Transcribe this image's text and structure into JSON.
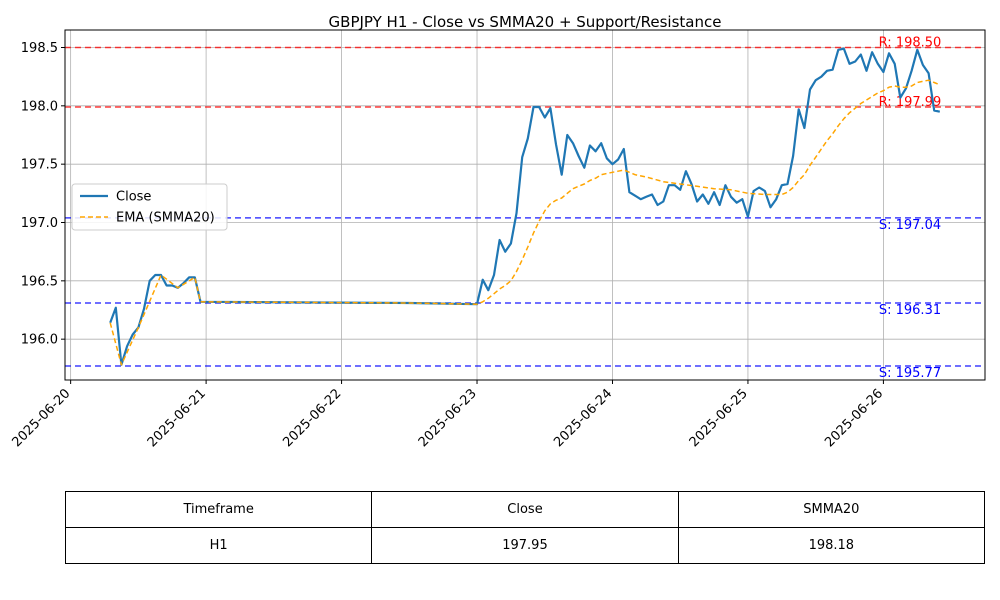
{
  "chart_data": {
    "type": "line",
    "title": "GBPJPY H1 - Close vs SMMA20 + Support/Resistance",
    "xlabel": "",
    "ylabel": "",
    "x_ticks": [
      "2025-06-20",
      "2025-06-21",
      "2025-06-22",
      "2025-06-23",
      "2025-06-24",
      "2025-06-25",
      "2025-06-26"
    ],
    "xlim": [
      "2025-06-19T23:00",
      "2025-06-26T18:00"
    ],
    "ylim": [
      195.65,
      198.65
    ],
    "y_ticks": [
      "196.0",
      "196.5",
      "197.0",
      "197.5",
      "198.0",
      "198.5"
    ],
    "grid": true,
    "legend_position": "center-left",
    "series": [
      {
        "name": "Close",
        "color": "#1f77b4",
        "style": "solid",
        "points": [
          [
            "2025-06-20T07:00",
            196.14
          ],
          [
            "2025-06-20T08:00",
            196.27
          ],
          [
            "2025-06-20T09:00",
            195.78
          ],
          [
            "2025-06-20T10:00",
            195.94
          ],
          [
            "2025-06-20T11:00",
            196.04
          ],
          [
            "2025-06-20T12:00",
            196.1
          ],
          [
            "2025-06-20T13:00",
            196.26
          ],
          [
            "2025-06-20T14:00",
            196.5
          ],
          [
            "2025-06-20T15:00",
            196.55
          ],
          [
            "2025-06-20T16:00",
            196.55
          ],
          [
            "2025-06-20T17:00",
            196.46
          ],
          [
            "2025-06-20T18:00",
            196.46
          ],
          [
            "2025-06-20T19:00",
            196.44
          ],
          [
            "2025-06-20T20:00",
            196.48
          ],
          [
            "2025-06-20T21:00",
            196.53
          ],
          [
            "2025-06-20T22:00",
            196.53
          ],
          [
            "2025-06-20T23:00",
            196.32
          ],
          [
            "2025-06-22T12:00",
            196.31
          ],
          [
            "2025-06-23T00:00",
            196.3
          ],
          [
            "2025-06-23T01:00",
            196.51
          ],
          [
            "2025-06-23T02:00",
            196.42
          ],
          [
            "2025-06-23T03:00",
            196.55
          ],
          [
            "2025-06-23T04:00",
            196.85
          ],
          [
            "2025-06-23T05:00",
            196.75
          ],
          [
            "2025-06-23T06:00",
            196.82
          ],
          [
            "2025-06-23T07:00",
            197.08
          ],
          [
            "2025-06-23T08:00",
            197.56
          ],
          [
            "2025-06-23T09:00",
            197.72
          ],
          [
            "2025-06-23T10:00",
            197.99
          ],
          [
            "2025-06-23T11:00",
            197.99
          ],
          [
            "2025-06-23T12:00",
            197.9
          ],
          [
            "2025-06-23T13:00",
            197.98
          ],
          [
            "2025-06-23T14:00",
            197.67
          ],
          [
            "2025-06-23T15:00",
            197.41
          ],
          [
            "2025-06-23T16:00",
            197.75
          ],
          [
            "2025-06-23T17:00",
            197.68
          ],
          [
            "2025-06-23T18:00",
            197.57
          ],
          [
            "2025-06-23T19:00",
            197.47
          ],
          [
            "2025-06-23T20:00",
            197.66
          ],
          [
            "2025-06-23T21:00",
            197.61
          ],
          [
            "2025-06-23T22:00",
            197.68
          ],
          [
            "2025-06-23T23:00",
            197.55
          ],
          [
            "2025-06-24T00:00",
            197.5
          ],
          [
            "2025-06-24T01:00",
            197.54
          ],
          [
            "2025-06-24T02:00",
            197.63
          ],
          [
            "2025-06-24T03:00",
            197.26
          ],
          [
            "2025-06-24T04:00",
            197.23
          ],
          [
            "2025-06-24T05:00",
            197.2
          ],
          [
            "2025-06-24T06:00",
            197.22
          ],
          [
            "2025-06-24T07:00",
            197.24
          ],
          [
            "2025-06-24T08:00",
            197.15
          ],
          [
            "2025-06-24T09:00",
            197.18
          ],
          [
            "2025-06-24T10:00",
            197.32
          ],
          [
            "2025-06-24T11:00",
            197.32
          ],
          [
            "2025-06-24T12:00",
            197.28
          ],
          [
            "2025-06-24T13:00",
            197.44
          ],
          [
            "2025-06-24T14:00",
            197.33
          ],
          [
            "2025-06-24T15:00",
            197.18
          ],
          [
            "2025-06-24T16:00",
            197.24
          ],
          [
            "2025-06-24T17:00",
            197.16
          ],
          [
            "2025-06-24T18:00",
            197.26
          ],
          [
            "2025-06-24T19:00",
            197.15
          ],
          [
            "2025-06-24T20:00",
            197.32
          ],
          [
            "2025-06-24T21:00",
            197.22
          ],
          [
            "2025-06-24T22:00",
            197.17
          ],
          [
            "2025-06-24T23:00",
            197.2
          ],
          [
            "2025-06-25T00:00",
            197.05
          ],
          [
            "2025-06-25T01:00",
            197.27
          ],
          [
            "2025-06-25T02:00",
            197.3
          ],
          [
            "2025-06-25T03:00",
            197.27
          ],
          [
            "2025-06-25T04:00",
            197.13
          ],
          [
            "2025-06-25T05:00",
            197.2
          ],
          [
            "2025-06-25T06:00",
            197.32
          ],
          [
            "2025-06-25T07:00",
            197.33
          ],
          [
            "2025-06-25T08:00",
            197.57
          ],
          [
            "2025-06-25T09:00",
            197.97
          ],
          [
            "2025-06-25T10:00",
            197.81
          ],
          [
            "2025-06-25T11:00",
            198.14
          ],
          [
            "2025-06-25T12:00",
            198.22
          ],
          [
            "2025-06-25T13:00",
            198.25
          ],
          [
            "2025-06-25T14:00",
            198.3
          ],
          [
            "2025-06-25T15:00",
            198.31
          ],
          [
            "2025-06-25T16:00",
            198.48
          ],
          [
            "2025-06-25T17:00",
            198.49
          ],
          [
            "2025-06-25T18:00",
            198.36
          ],
          [
            "2025-06-25T19:00",
            198.38
          ],
          [
            "2025-06-25T20:00",
            198.44
          ],
          [
            "2025-06-25T21:00",
            198.3
          ],
          [
            "2025-06-25T22:00",
            198.46
          ],
          [
            "2025-06-25T23:00",
            198.36
          ],
          [
            "2025-06-26T00:00",
            198.29
          ],
          [
            "2025-06-26T01:00",
            198.45
          ],
          [
            "2025-06-26T02:00",
            198.36
          ],
          [
            "2025-06-26T03:00",
            198.07
          ],
          [
            "2025-06-26T04:00",
            198.15
          ],
          [
            "2025-06-26T05:00",
            198.3
          ],
          [
            "2025-06-26T06:00",
            198.48
          ],
          [
            "2025-06-26T07:00",
            198.35
          ],
          [
            "2025-06-26T08:00",
            198.28
          ],
          [
            "2025-06-26T09:00",
            197.96
          ],
          [
            "2025-06-26T10:00",
            197.95
          ]
        ]
      },
      {
        "name": "EMA (SMMA20)",
        "color": "#ffa500",
        "style": "dashed",
        "points": [
          [
            "2025-06-20T07:00",
            196.14
          ],
          [
            "2025-06-20T09:00",
            195.78
          ],
          [
            "2025-06-20T12:00",
            196.1
          ],
          [
            "2025-06-20T16:00",
            196.55
          ],
          [
            "2025-06-20T19:00",
            196.44
          ],
          [
            "2025-06-20T22:00",
            196.53
          ],
          [
            "2025-06-20T23:00",
            196.32
          ],
          [
            "2025-06-22T12:00",
            196.31
          ],
          [
            "2025-06-23T00:00",
            196.3
          ],
          [
            "2025-06-23T01:00",
            196.32
          ],
          [
            "2025-06-23T02:00",
            196.35
          ],
          [
            "2025-06-23T03:00",
            196.39
          ],
          [
            "2025-06-23T04:00",
            196.43
          ],
          [
            "2025-06-23T05:00",
            196.46
          ],
          [
            "2025-06-23T06:00",
            196.5
          ],
          [
            "2025-06-23T07:00",
            196.58
          ],
          [
            "2025-06-23T08:00",
            196.68
          ],
          [
            "2025-06-23T09:00",
            196.79
          ],
          [
            "2025-06-23T10:00",
            196.91
          ],
          [
            "2025-06-23T11:00",
            197.01
          ],
          [
            "2025-06-23T12:00",
            197.1
          ],
          [
            "2025-06-23T13:00",
            197.16
          ],
          [
            "2025-06-23T14:00",
            197.19
          ],
          [
            "2025-06-23T15:00",
            197.21
          ],
          [
            "2025-06-23T16:00",
            197.25
          ],
          [
            "2025-06-23T17:00",
            197.29
          ],
          [
            "2025-06-23T18:00",
            197.31
          ],
          [
            "2025-06-23T19:00",
            197.33
          ],
          [
            "2025-06-23T20:00",
            197.36
          ],
          [
            "2025-06-23T21:00",
            197.38
          ],
          [
            "2025-06-23T22:00",
            197.41
          ],
          [
            "2025-06-23T23:00",
            197.42
          ],
          [
            "2025-06-24T00:00",
            197.43
          ],
          [
            "2025-06-24T01:00",
            197.44
          ],
          [
            "2025-06-24T02:00",
            197.45
          ],
          [
            "2025-06-24T03:00",
            197.43
          ],
          [
            "2025-06-24T04:00",
            197.41
          ],
          [
            "2025-06-24T06:00",
            197.39
          ],
          [
            "2025-06-24T09:00",
            197.35
          ],
          [
            "2025-06-24T12:00",
            197.33
          ],
          [
            "2025-06-24T15:00",
            197.31
          ],
          [
            "2025-06-24T18:00",
            197.29
          ],
          [
            "2025-06-24T21:00",
            197.28
          ],
          [
            "2025-06-25T00:00",
            197.25
          ],
          [
            "2025-06-25T03:00",
            197.24
          ],
          [
            "2025-06-25T06:00",
            197.24
          ],
          [
            "2025-06-25T07:00",
            197.26
          ],
          [
            "2025-06-25T08:00",
            197.3
          ],
          [
            "2025-06-25T09:00",
            197.36
          ],
          [
            "2025-06-25T10:00",
            197.41
          ],
          [
            "2025-06-25T11:00",
            197.49
          ],
          [
            "2025-06-25T12:00",
            197.56
          ],
          [
            "2025-06-25T13:00",
            197.63
          ],
          [
            "2025-06-25T14:00",
            197.7
          ],
          [
            "2025-06-25T15:00",
            197.76
          ],
          [
            "2025-06-25T16:00",
            197.83
          ],
          [
            "2025-06-25T17:00",
            197.89
          ],
          [
            "2025-06-25T18:00",
            197.94
          ],
          [
            "2025-06-25T19:00",
            197.98
          ],
          [
            "2025-06-25T20:00",
            198.02
          ],
          [
            "2025-06-25T21:00",
            198.05
          ],
          [
            "2025-06-25T22:00",
            198.08
          ],
          [
            "2025-06-25T23:00",
            198.11
          ],
          [
            "2025-06-26T00:00",
            198.13
          ],
          [
            "2025-06-26T01:00",
            198.16
          ],
          [
            "2025-06-26T02:00",
            198.17
          ],
          [
            "2025-06-26T03:00",
            198.16
          ],
          [
            "2025-06-26T04:00",
            198.16
          ],
          [
            "2025-06-26T05:00",
            198.17
          ],
          [
            "2025-06-26T06:00",
            198.2
          ],
          [
            "2025-06-26T07:00",
            198.21
          ],
          [
            "2025-06-26T08:00",
            198.22
          ],
          [
            "2025-06-26T09:00",
            198.2
          ],
          [
            "2025-06-26T10:00",
            198.18
          ]
        ]
      }
    ],
    "levels": [
      {
        "kind": "resistance",
        "value": 198.5,
        "label": "R: 198.50",
        "color": "#ff0000"
      },
      {
        "kind": "resistance",
        "value": 197.99,
        "label": "R: 197.99",
        "color": "#ff0000"
      },
      {
        "kind": "support",
        "value": 197.04,
        "label": "S: 197.04",
        "color": "#0000ff"
      },
      {
        "kind": "support",
        "value": 196.31,
        "label": "S: 196.31",
        "color": "#0000ff"
      },
      {
        "kind": "support",
        "value": 195.77,
        "label": "S: 195.77",
        "color": "#0000ff"
      }
    ]
  },
  "table": {
    "headers": [
      "Timeframe",
      "Close",
      "SMMA20"
    ],
    "row": [
      "H1",
      "197.95",
      "198.18"
    ]
  }
}
